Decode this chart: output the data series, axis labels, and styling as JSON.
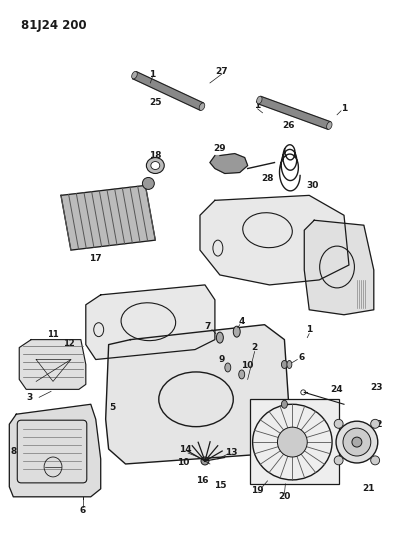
{
  "title": "81J24 200",
  "bg_color": "#ffffff",
  "line_color": "#1a1a1a",
  "fill_color": "#cccccc",
  "dark_fill": "#555555",
  "title_fontsize": 9,
  "label_fontsize": 6.5
}
